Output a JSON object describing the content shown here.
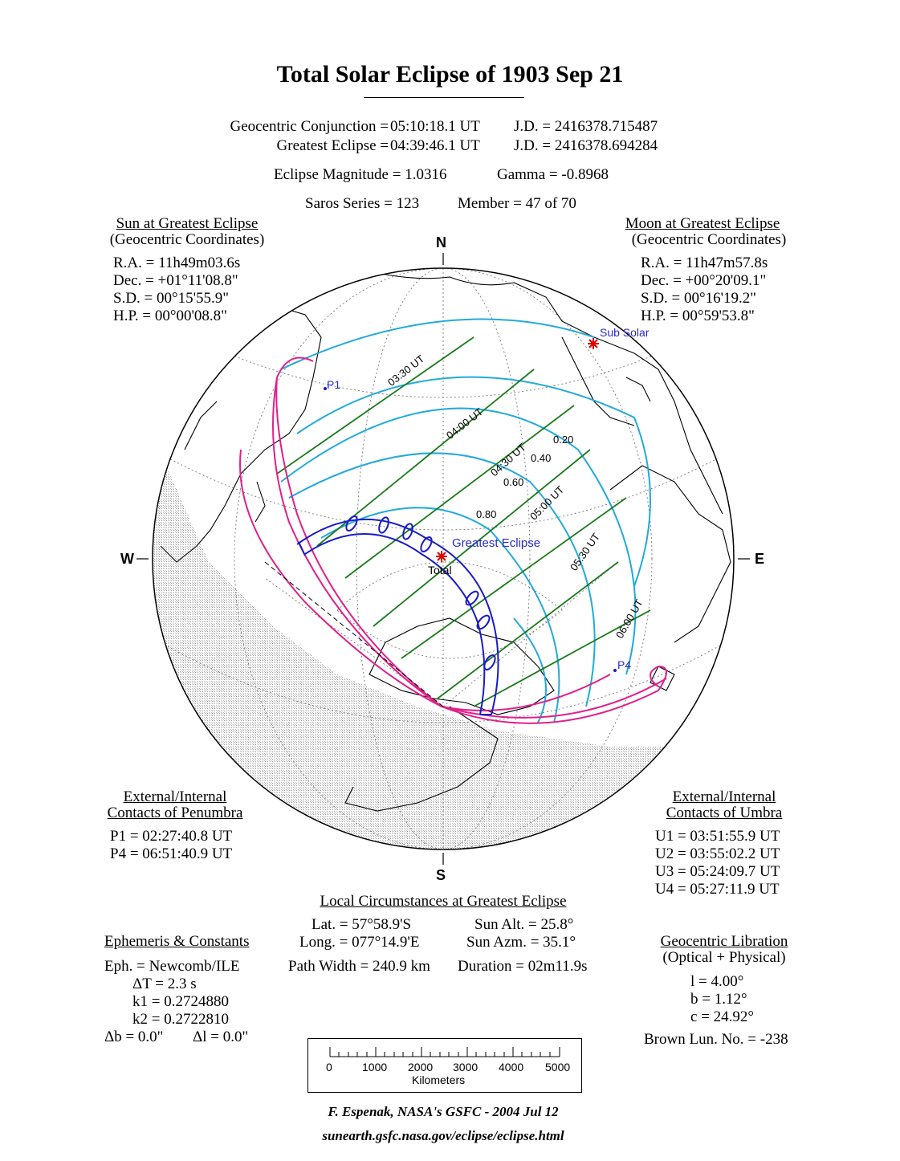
{
  "title": "Total Solar Eclipse of  1903 Sep 21",
  "header": {
    "conj_label": "Geocentric Conjunction =",
    "conj_time": "05:10:18.1 UT",
    "conj_jd": "J.D. =  2416378.715487",
    "greatest_label": "Greatest Eclipse =",
    "greatest_time": "04:39:46.1 UT",
    "greatest_jd": "J.D. =  2416378.694284",
    "magnitude": "Eclipse Magnitude =  1.0316",
    "gamma": "Gamma = -0.8968",
    "saros": "Saros Series = 123",
    "member": "Member = 47 of 70"
  },
  "sun": {
    "heading": "Sun at Greatest Eclipse",
    "subheading": "(Geocentric Coordinates)",
    "lines": [
      "R.A. = 11h49m03.6s",
      "Dec. = +01°11'08.8\"",
      "S.D. =  00°15'55.9\"",
      "H.P. =  00°00'08.8\""
    ]
  },
  "moon": {
    "heading": "Moon at Greatest Eclipse",
    "subheading": "(Geocentric Coordinates)",
    "lines": [
      "R.A. = 11h47m57.8s",
      "Dec. = +00°20'09.1\"",
      "S.D. =  00°16'19.2\"",
      "H.P. =  00°59'53.8\""
    ]
  },
  "compass": {
    "n": "N",
    "s": "S",
    "e": "E",
    "w": "W"
  },
  "map_labels": {
    "sub_solar": "Sub Solar",
    "p1": "P1",
    "p4": "P4",
    "greatest": "Greatest Eclipse",
    "total": "Total",
    "times": [
      "03:30 UT",
      "04:00 UT",
      "04:30 UT",
      "05:00 UT",
      "05:30 UT",
      "06:00 UT"
    ],
    "magnitudes": [
      "0.20",
      "0.40",
      "0.60",
      "0.80"
    ]
  },
  "penumbra": {
    "heading1": "External/Internal",
    "heading2": "Contacts of Penumbra",
    "lines": [
      "P1 = 02:27:40.8 UT",
      "P4 = 06:51:40.9 UT"
    ]
  },
  "umbra": {
    "heading1": "External/Internal",
    "heading2": "Contacts of Umbra",
    "lines": [
      "U1 = 03:51:55.9 UT",
      "U2 = 03:55:02.2 UT",
      "U3 = 05:24:09.7 UT",
      "U4 = 05:27:11.9 UT"
    ]
  },
  "local": {
    "heading": "Local Circumstances at Greatest Eclipse",
    "lat": "Lat. =  57°58.9'S",
    "long": "Long. = 077°14.9'E",
    "path": "Path Width = 240.9 km",
    "sun_alt": "Sun Alt. =   25.8°",
    "sun_azm": "Sun Azm. =  35.1°",
    "duration": "Duration =  02m11.9s"
  },
  "ephemeris": {
    "heading": "Ephemeris & Constants",
    "eph": "Eph. = Newcomb/ILE",
    "dt": "ΔT =     2.3 s",
    "k1": "k1 = 0.2724880",
    "k2": "k2 = 0.2722810",
    "db": "Δb =   0.0\"",
    "dl": "Δl =   0.0\""
  },
  "libration": {
    "heading": "Geocentric Libration",
    "subheading": "(Optical + Physical)",
    "l": "l =    4.00°",
    "b": "b =    1.12°",
    "c": "c =   24.92°",
    "brown": "Brown Lun. No. = -238"
  },
  "scale": {
    "ticks": [
      "0",
      "1000",
      "2000",
      "3000",
      "4000",
      "5000"
    ],
    "unit": "Kilometers"
  },
  "credit": "F. Espenak, NASA's GSFC -  2004 Jul 12",
  "url": "sunearth.gsfc.nasa.gov/eclipse/eclipse.html",
  "colors": {
    "penumbra_limits": "#e0208a",
    "umbra_path": "#1a1ac8",
    "time_lines": "#1a7a1a",
    "magnitude_curves": "#22aadd",
    "label_blue": "#2a2ad0",
    "sub_solar_mark": "#e00000"
  }
}
